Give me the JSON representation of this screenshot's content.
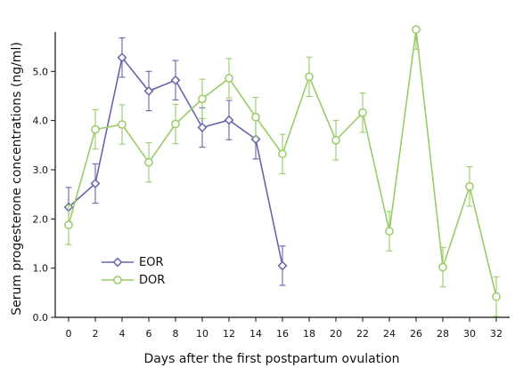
{
  "chart_data": {
    "type": "line",
    "title": "",
    "xlabel": "Days after the first postpartum ovulation",
    "ylabel": "Serum progesterone concentrations (ng/ml)",
    "xlim": [
      -1,
      33
    ],
    "ylim": [
      0,
      5.8
    ],
    "xticks": [
      0,
      2,
      4,
      6,
      8,
      10,
      12,
      14,
      16,
      18,
      20,
      22,
      24,
      26,
      28,
      30,
      32
    ],
    "yticks": [
      0.0,
      1.0,
      2.0,
      3.0,
      4.0,
      5.0
    ],
    "ytick_labels": [
      "0.0",
      "1.0",
      "2.0",
      "3.0",
      "4.0",
      "5.0"
    ],
    "grid": false,
    "legend_position": "lower-left",
    "series": [
      {
        "name": "EOR",
        "color": "#6666aa",
        "marker": "diamond",
        "x": [
          0,
          2,
          4,
          6,
          8,
          10,
          12,
          14,
          16
        ],
        "y": [
          2.24,
          2.72,
          5.28,
          4.6,
          4.82,
          3.86,
          4.01,
          3.62,
          1.05
        ],
        "error": [
          0.4,
          0.4,
          0.4,
          0.4,
          0.4,
          0.4,
          0.4,
          0.4,
          0.4
        ]
      },
      {
        "name": "DOR",
        "color": "#99cc66",
        "marker": "circle",
        "x": [
          0,
          2,
          4,
          6,
          8,
          10,
          12,
          14,
          16,
          18,
          20,
          22,
          24,
          26,
          28,
          30,
          32
        ],
        "y": [
          1.88,
          3.82,
          3.92,
          3.15,
          3.93,
          4.44,
          4.86,
          4.07,
          3.32,
          4.89,
          3.6,
          4.16,
          1.75,
          5.85,
          1.02,
          2.66,
          0.42
        ],
        "error": [
          0.4,
          0.4,
          0.4,
          0.4,
          0.4,
          0.4,
          0.4,
          0.4,
          0.4,
          0.4,
          0.4,
          0.4,
          0.4,
          0.4,
          0.4,
          0.4,
          0.4
        ]
      }
    ]
  }
}
